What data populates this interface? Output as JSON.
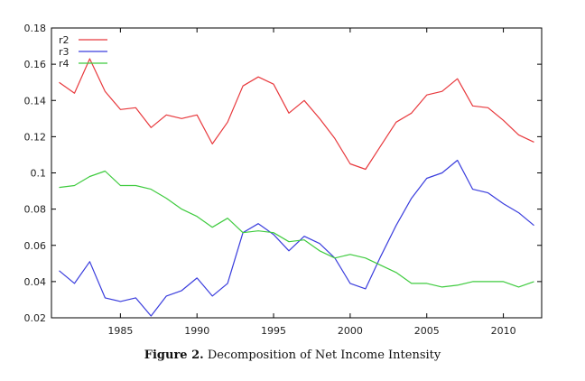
{
  "caption": {
    "figure_number": "Figure 2.",
    "text": "Decomposition of Net Income Intensity"
  },
  "colors": {
    "r2": "#e8393d",
    "r3": "#3a3ddd",
    "r4": "#3fcb3f",
    "axis": "#000000"
  },
  "chart_data": {
    "type": "line",
    "title": "",
    "xlabel": "",
    "ylabel": "",
    "xlim": [
      1980.5,
      2012.5
    ],
    "ylim": [
      0.02,
      0.18
    ],
    "xticks": [
      1985,
      1990,
      1995,
      2000,
      2005,
      2010
    ],
    "yticks": [
      0.02,
      0.04,
      0.06,
      0.08,
      0.1,
      0.12,
      0.14,
      0.16,
      0.18
    ],
    "ytick_labels": [
      "0.02",
      "0.04",
      "0.06",
      "0.08",
      "0.1",
      "0.12",
      "0.14",
      "0.16",
      "0.18"
    ],
    "grid": false,
    "legend": "top-left",
    "x": [
      1981,
      1982,
      1983,
      1984,
      1985,
      1986,
      1987,
      1988,
      1989,
      1990,
      1991,
      1992,
      1993,
      1994,
      1995,
      1996,
      1997,
      1998,
      1999,
      2000,
      2001,
      2002,
      2003,
      2004,
      2005,
      2006,
      2007,
      2008,
      2009,
      2010,
      2011,
      2012
    ],
    "series": [
      {
        "name": "r2",
        "color": "#e8393d",
        "values": [
          0.15,
          0.144,
          0.163,
          0.145,
          0.135,
          0.136,
          0.125,
          0.132,
          0.13,
          0.132,
          0.116,
          0.128,
          0.148,
          0.153,
          0.149,
          0.133,
          0.14,
          0.13,
          0.119,
          0.105,
          0.102,
          0.115,
          0.128,
          0.133,
          0.143,
          0.145,
          0.152,
          0.137,
          0.136,
          0.129,
          0.121,
          0.117
        ]
      },
      {
        "name": "r3",
        "color": "#3a3ddd",
        "values": [
          0.046,
          0.039,
          0.051,
          0.031,
          0.029,
          0.031,
          0.021,
          0.032,
          0.035,
          0.042,
          0.032,
          0.039,
          0.067,
          0.072,
          0.066,
          0.057,
          0.065,
          0.061,
          0.053,
          0.039,
          0.036,
          0.054,
          0.071,
          0.086,
          0.097,
          0.1,
          0.107,
          0.091,
          0.089,
          0.083,
          0.078,
          0.071
        ]
      },
      {
        "name": "r4",
        "color": "#3fcb3f",
        "values": [
          0.092,
          0.093,
          0.098,
          0.101,
          0.093,
          0.093,
          0.091,
          0.086,
          0.08,
          0.076,
          0.07,
          0.075,
          0.067,
          0.068,
          0.067,
          0.062,
          0.063,
          0.057,
          0.053,
          0.055,
          0.053,
          0.049,
          0.045,
          0.039,
          0.039,
          0.037,
          0.038,
          0.04,
          0.04,
          0.04,
          0.037,
          0.04
        ]
      }
    ]
  }
}
